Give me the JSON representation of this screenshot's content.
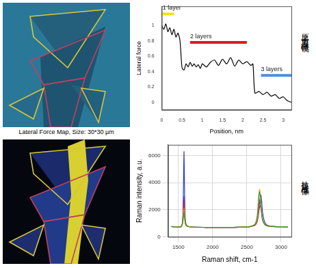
{
  "panels": {
    "afm_image": {
      "caption": "Lateral Force Map, Size: 30*30 µm"
    },
    "row_labels": [
      "原子力显微镜",
      "拉曼成像"
    ]
  },
  "chart_data": [
    {
      "type": "line",
      "x_label": "Position, nm",
      "y_label": "Lateral force",
      "color": "#000000",
      "marker": "none",
      "grid": false,
      "x": [
        0,
        0.05,
        0.1,
        0.15,
        0.2,
        0.25,
        0.3,
        0.35,
        0.4,
        0.45,
        0.5,
        0.55,
        0.6,
        0.65,
        0.7,
        0.75,
        0.8,
        0.85,
        0.9,
        0.95,
        1.0,
        1.1,
        1.2,
        1.3,
        1.4,
        1.5,
        1.6,
        1.7,
        1.8,
        1.9,
        2.0,
        2.1,
        2.2,
        2.25,
        2.3,
        2.4,
        2.5,
        2.6,
        2.7,
        2.8,
        2.9,
        3.0,
        3.1,
        3.2
      ],
      "values": [
        1.0,
        0.95,
        1.02,
        0.92,
        0.97,
        0.88,
        0.95,
        0.85,
        0.9,
        0.8,
        0.45,
        0.42,
        0.5,
        0.46,
        0.52,
        0.47,
        0.5,
        0.46,
        0.49,
        0.44,
        0.5,
        0.46,
        0.52,
        0.55,
        0.48,
        0.56,
        0.5,
        0.58,
        0.47,
        0.55,
        0.5,
        0.53,
        0.48,
        0.5,
        0.12,
        0.14,
        0.1,
        0.13,
        0.08,
        0.1,
        0.05,
        0.07,
        0.02,
        0.0
      ],
      "xlim": [
        0,
        3.2
      ],
      "ylim": [
        -0.1,
        1.25
      ],
      "xticks": [
        0,
        0.5,
        1,
        1.5,
        2,
        2.5,
        3
      ],
      "yticks": [
        0,
        0.2,
        0.4,
        0.6,
        0.8,
        1
      ],
      "annotations": [
        {
          "text": "1 layer",
          "x": [
            0.02,
            0.3
          ],
          "y": 1.15,
          "color": "#f2e600"
        },
        {
          "text": "2 layers",
          "x": [
            0.7,
            2.1
          ],
          "y": 0.78,
          "color": "#e0191e"
        },
        {
          "text": "3 layers",
          "x": [
            2.45,
            3.2
          ],
          "y": 0.35,
          "color": "#4a90d9"
        }
      ]
    },
    {
      "type": "line",
      "x_label": "Raman shift, cm-1",
      "y_label": "Raman intensity, a.u.",
      "grid": true,
      "marker": "none",
      "x": [
        1400,
        1450,
        1500,
        1540,
        1560,
        1570,
        1578,
        1582,
        1586,
        1594,
        1605,
        1630,
        1700,
        1900,
        2100,
        2300,
        2450,
        2550,
        2620,
        2650,
        2665,
        2675,
        2685,
        2695,
        2705,
        2715,
        2730,
        2760,
        2800,
        2900,
        3000,
        3100
      ],
      "series": [
        {
          "color": "#2ca02c",
          "values": [
            760,
            740,
            720,
            750,
            950,
            1300,
            1650,
            1800,
            1600,
            1200,
            900,
            780,
            720,
            700,
            700,
            700,
            720,
            760,
            950,
            1500,
            2400,
            3100,
            3300,
            2900,
            2300,
            1700,
            1200,
            900,
            800,
            750,
            740,
            730
          ]
        },
        {
          "color": "#ff8c1a",
          "values": [
            760,
            740,
            720,
            750,
            1000,
            1500,
            2000,
            2100,
            1900,
            1400,
            950,
            790,
            720,
            700,
            700,
            700,
            720,
            760,
            930,
            1300,
            2100,
            3000,
            3500,
            3200,
            2500,
            1900,
            1300,
            950,
            820,
            760,
            740,
            730
          ]
        },
        {
          "color": "#e03030",
          "values": [
            760,
            740,
            720,
            750,
            1050,
            1700,
            2250,
            2400,
            2150,
            1500,
            1000,
            800,
            720,
            700,
            700,
            700,
            720,
            760,
            900,
            1200,
            1800,
            2400,
            2700,
            2650,
            2300,
            1800,
            1250,
            930,
            810,
            760,
            740,
            730
          ]
        },
        {
          "color": "#8b2d7a",
          "values": [
            760,
            740,
            720,
            750,
            1000,
            1800,
            2700,
            3000,
            2600,
            1500,
            950,
            790,
            720,
            700,
            700,
            700,
            720,
            760,
            850,
            1100,
            1500,
            1900,
            2200,
            2300,
            2100,
            1800,
            1300,
            950,
            820,
            760,
            740,
            730
          ]
        },
        {
          "color": "#2a3fd0",
          "values": [
            760,
            740,
            720,
            760,
            1100,
            2500,
            5200,
            6300,
            5000,
            2200,
            1100,
            800,
            720,
            700,
            700,
            700,
            720,
            760,
            900,
            1200,
            1600,
            2000,
            2500,
            2900,
            3100,
            2700,
            1800,
            1100,
            850,
            760,
            740,
            730
          ]
        }
      ],
      "xlim": [
        1350,
        3150
      ],
      "ylim": [
        0,
        6800
      ],
      "xticks": [
        1500,
        2000,
        2500,
        3000
      ],
      "yticks": [
        0,
        2000,
        4000,
        6000
      ]
    }
  ]
}
